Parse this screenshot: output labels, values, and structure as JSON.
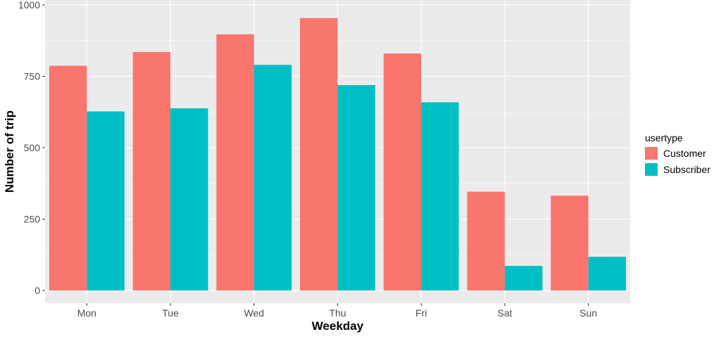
{
  "chart_data": {
    "type": "bar",
    "categories": [
      "Mon",
      "Tue",
      "Wed",
      "Thu",
      "Fri",
      "Sat",
      "Sun"
    ],
    "series": [
      {
        "name": "Customer",
        "values": [
          787,
          835,
          897,
          954,
          830,
          346,
          332
        ],
        "color": "#F8766D"
      },
      {
        "name": "Subscriber",
        "values": [
          627,
          638,
          790,
          719,
          659,
          86,
          118
        ],
        "color": "#00BFC4"
      }
    ],
    "xlabel": "Weekday",
    "ylabel": "Number of trip",
    "ylim": [
      0,
      1000
    ],
    "yticks": [
      0,
      250,
      500,
      750,
      1000
    ],
    "legend": {
      "title": "usertype",
      "position": "right"
    },
    "grid": true,
    "panel_color": "#EBEBEB",
    "grid_color": "#FFFFFF"
  }
}
